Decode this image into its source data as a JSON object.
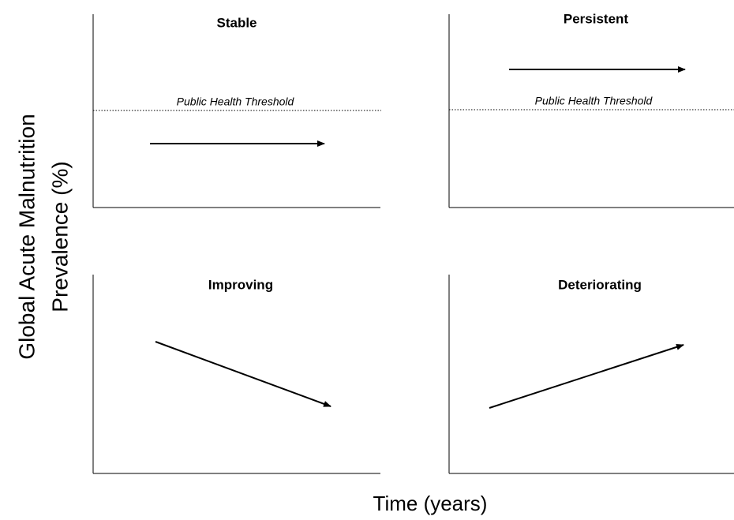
{
  "y_axis_label": [
    "Global Acute Malnutrition",
    "Prevalence (%)"
  ],
  "x_axis_label": "Time (years)",
  "panels": [
    {
      "title": "Stable",
      "threshold_label": "Public Health Threshold"
    },
    {
      "title": "Persistent",
      "threshold_label": "Public Health Threshold"
    },
    {
      "title": "Improving"
    },
    {
      "title": "Deteriorating"
    }
  ]
}
